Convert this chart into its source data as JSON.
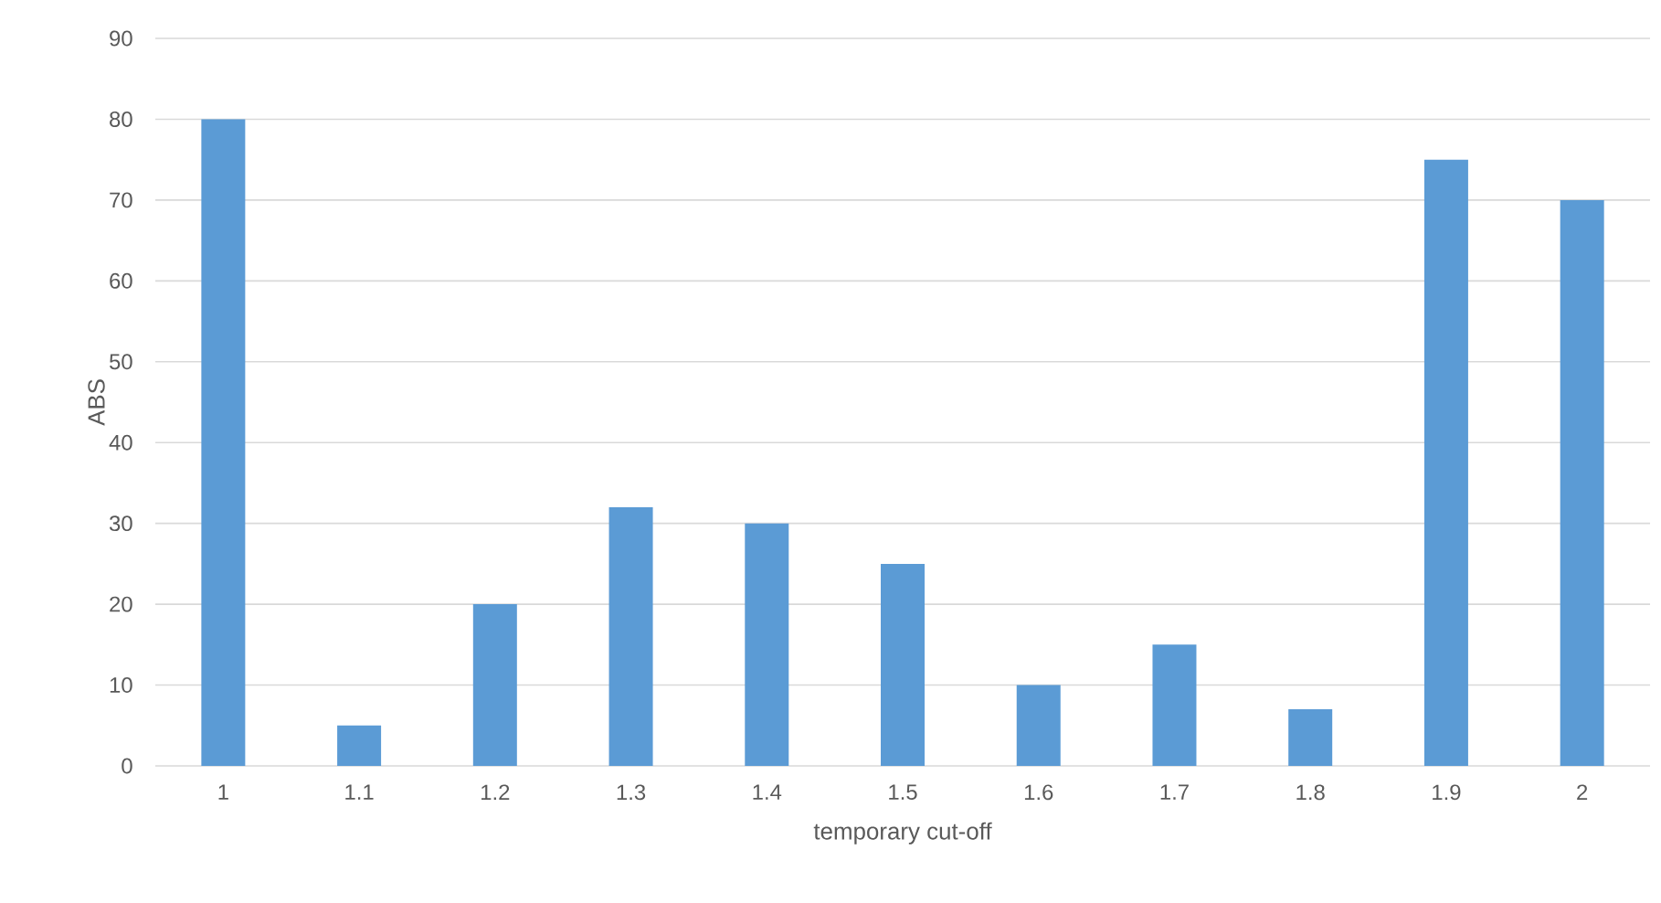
{
  "chart_data": {
    "type": "bar",
    "categories": [
      "1",
      "1.1",
      "1.2",
      "1.3",
      "1.4",
      "1.5",
      "1.6",
      "1.7",
      "1.8",
      "1.9",
      "2"
    ],
    "values": [
      80,
      5,
      20,
      32,
      30,
      25,
      10,
      15,
      7,
      75,
      70
    ],
    "color": "#5b9bd5",
    "xlabel": "temporary cut-off",
    "ylabel": "ABS",
    "ylim": [
      0,
      90
    ],
    "yticks": [
      0,
      10,
      20,
      30,
      40,
      50,
      60,
      70,
      80,
      90
    ],
    "grid": "y"
  }
}
